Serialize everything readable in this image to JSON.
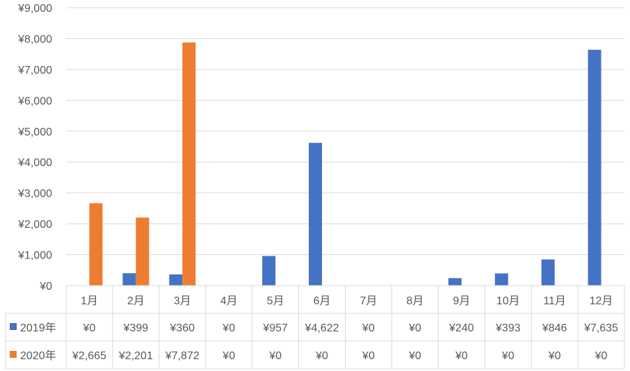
{
  "chart_data": {
    "type": "bar",
    "categories": [
      "1月",
      "2月",
      "3月",
      "4月",
      "5月",
      "6月",
      "7月",
      "8月",
      "9月",
      "10月",
      "11月",
      "12月"
    ],
    "series": [
      {
        "name": "2019年",
        "color": "#4472C4",
        "values": [
          0,
          399,
          360,
          0,
          957,
          4622,
          0,
          0,
          240,
          393,
          846,
          7635
        ],
        "labels": [
          "¥0",
          "¥399",
          "¥360",
          "¥0",
          "¥957",
          "¥4,622",
          "¥0",
          "¥0",
          "¥240",
          "¥393",
          "¥846",
          "¥7,635"
        ]
      },
      {
        "name": "2020年",
        "color": "#ED7D31",
        "values": [
          2665,
          2201,
          7872,
          0,
          0,
          0,
          0,
          0,
          0,
          0,
          0,
          0
        ],
        "labels": [
          "¥2,665",
          "¥2,201",
          "¥7,872",
          "¥0",
          "¥0",
          "¥0",
          "¥0",
          "¥0",
          "¥0",
          "¥0",
          "¥0",
          "¥0"
        ]
      }
    ],
    "ylim": [
      0,
      9000
    ],
    "yticks": [
      0,
      1000,
      2000,
      3000,
      4000,
      5000,
      6000,
      7000,
      8000,
      9000
    ],
    "ytick_labels": [
      "¥0",
      "¥1,000",
      "¥2,000",
      "¥3,000",
      "¥4,000",
      "¥5,000",
      "¥6,000",
      "¥7,000",
      "¥8,000",
      "¥9,000"
    ],
    "grid": true,
    "data_table": true
  }
}
